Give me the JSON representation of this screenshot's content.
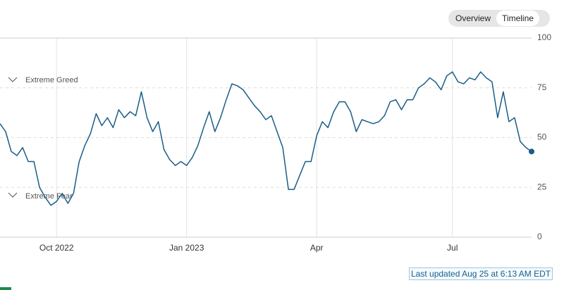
{
  "toggle": [
    "Overview",
    "Timeline"
  ],
  "chart_data": {
    "type": "line",
    "annotations": [
      "Extreme Greed",
      "Extreme Fear"
    ],
    "categories": [
      null,
      null,
      null,
      null,
      null,
      null,
      null,
      null,
      null,
      null,
      "Oct 2022",
      null,
      null,
      null,
      null,
      null,
      null,
      null,
      null,
      null,
      null,
      null,
      null,
      null,
      null,
      null,
      null,
      null,
      null,
      null,
      null,
      null,
      null,
      "Jan 2023",
      null,
      null,
      null,
      null,
      null,
      null,
      null,
      null,
      null,
      null,
      null,
      null,
      null,
      null,
      null,
      null,
      null,
      null,
      null,
      null,
      null,
      null,
      "Apr",
      null,
      null,
      null,
      null,
      null,
      null,
      null,
      null,
      null,
      null,
      null,
      null,
      null,
      null,
      null,
      null,
      null,
      null,
      null,
      null,
      null,
      null,
      null,
      "Jul",
      null,
      null,
      null,
      null,
      null,
      null,
      null,
      null,
      null,
      null,
      null,
      null,
      null,
      null
    ],
    "values": [
      57,
      53,
      43,
      41,
      45,
      38,
      38,
      25,
      20,
      16,
      18,
      22,
      17,
      22,
      38,
      46,
      52,
      62,
      56,
      60,
      55,
      64,
      60,
      63,
      61,
      73,
      60,
      53,
      58,
      44,
      39,
      36,
      38,
      36,
      40,
      46,
      55,
      63,
      53,
      60,
      69,
      77,
      76,
      74,
      70,
      66,
      63,
      59,
      61,
      53,
      45,
      24,
      24,
      31,
      38,
      38,
      51,
      58,
      55,
      63,
      68,
      68,
      63,
      53,
      59,
      58,
      57,
      58,
      61,
      68,
      69,
      64,
      69,
      69,
      75,
      77,
      80,
      78,
      74,
      81,
      83,
      78,
      77,
      80,
      79,
      83,
      80,
      78,
      60,
      73,
      58,
      60,
      48,
      45,
      43
    ],
    "color": "#1a5d87",
    "ylim": [
      0,
      100
    ],
    "yticks": [
      0,
      25,
      50,
      75,
      100
    ],
    "grid": true
  },
  "last_updated": "Last updated Aug 25 at 6:13 AM EDT"
}
